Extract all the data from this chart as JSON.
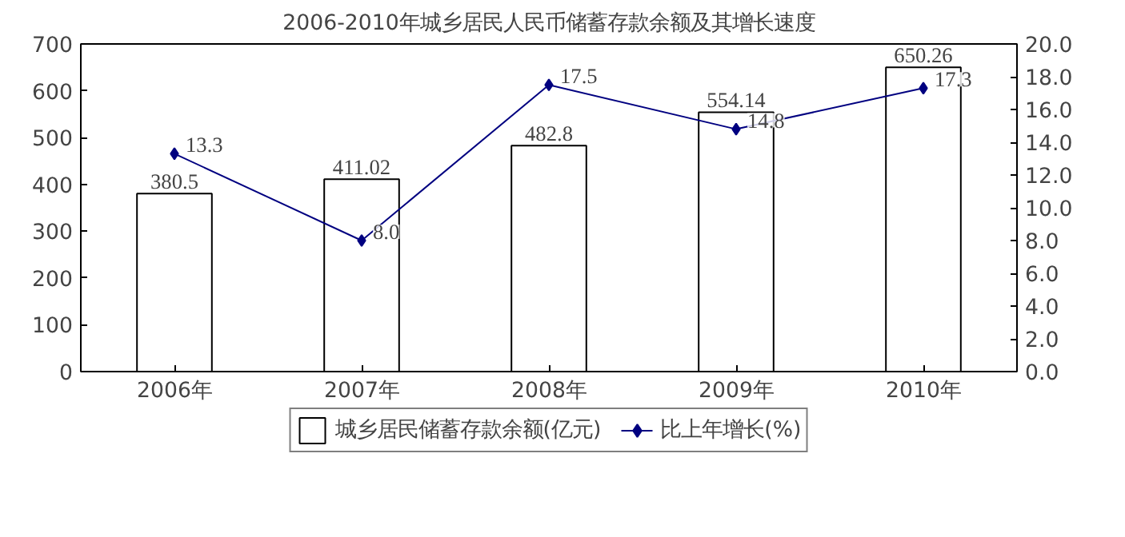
{
  "chart_data": {
    "type": "bar",
    "title": "2006-2010年城乡居民人民币储蓄存款余额及其增长速度",
    "categories": [
      "2006年",
      "2007年",
      "2008年",
      "2009年",
      "2010年"
    ],
    "series": [
      {
        "name": "城乡居民储蓄存款余额(亿元)",
        "color": "#ffffff",
        "values": [
          380.5,
          411.02,
          482.8,
          554.14,
          650.26
        ],
        "value_labels": [
          "380.5",
          "411.02",
          "482.8",
          "554.14",
          "650.26"
        ]
      },
      {
        "name": "比上年增长(%)",
        "type": "line",
        "axis": "y2",
        "color": "#000080",
        "marker": "diamond",
        "values": [
          13.3,
          8.0,
          17.5,
          14.8,
          17.3
        ],
        "value_labels": [
          "13.3",
          "8.0",
          "17.5",
          "14.8",
          "17.3"
        ]
      }
    ],
    "ylim": [
      0,
      700
    ],
    "yticks": [
      0,
      100,
      200,
      300,
      400,
      500,
      600,
      700
    ],
    "y2lim": [
      0,
      20
    ],
    "y2ticks": [
      {
        "value": 0,
        "label": "0.0"
      },
      {
        "value": 2,
        "label": "2.0"
      },
      {
        "value": 4,
        "label": "4.0"
      },
      {
        "value": 6,
        "label": "6.0"
      },
      {
        "value": 8,
        "label": "8.0"
      },
      {
        "value": 10,
        "label": "10.0"
      },
      {
        "value": 12,
        "label": "12.0"
      },
      {
        "value": 14,
        "label": "14.0"
      },
      {
        "value": 16,
        "label": "16.0"
      },
      {
        "value": 18,
        "label": "18.0"
      },
      {
        "value": 20,
        "label": "20.0"
      }
    ],
    "legend": "bottom"
  }
}
